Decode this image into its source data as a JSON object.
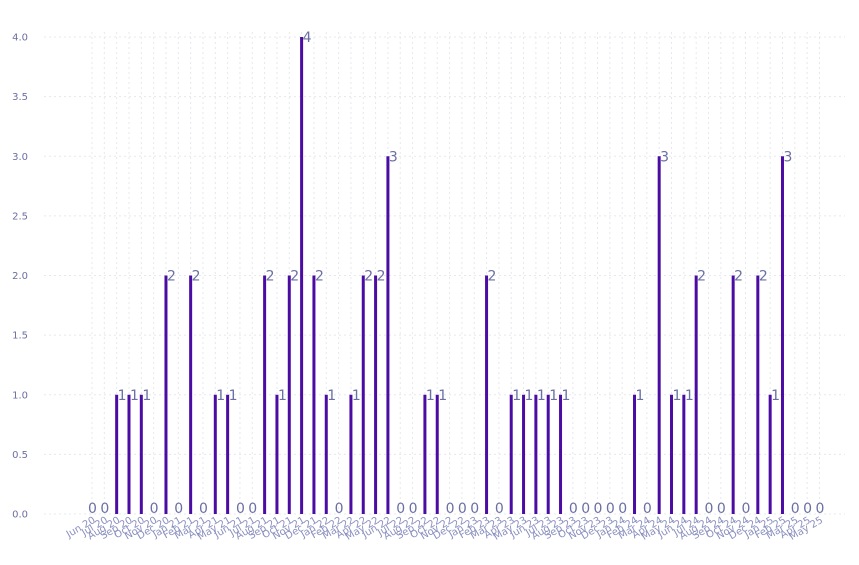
{
  "chart_data": {
    "type": "bar",
    "title": "",
    "xlabel": "",
    "ylabel": "",
    "ylim": [
      0,
      4.2
    ],
    "yticks": [
      "0.0",
      "0.5",
      "1.0",
      "1.5",
      "2.0",
      "2.5",
      "3.0",
      "3.5",
      "4.0"
    ],
    "grid": true,
    "bar_color": "#4b0ca3",
    "label_color": "#6b6fa3",
    "categories": [
      "Jun 20",
      "Jul 20",
      "Aug 20",
      "Sep 20",
      "Oct 20",
      "Nov 20",
      "Dec 20",
      "Jan 21",
      "Feb 21",
      "Mar 21",
      "Apr 21",
      "May 21",
      "Jun 21",
      "Jul 21",
      "Aug 21",
      "Sep 21",
      "Oct 21",
      "Nov 21",
      "Dec 21",
      "Jan 22",
      "Feb 22",
      "Mar 22",
      "Apr 22",
      "May 22",
      "Jun 22",
      "Jul 22",
      "Aug 22",
      "Sep 22",
      "Oct 22",
      "Nov 22",
      "Dec 22",
      "Jan 23",
      "Feb 23",
      "Mar 23",
      "Apr 23",
      "May 23",
      "Jun 23",
      "Jul 23",
      "Aug 23",
      "Sep 23",
      "Oct 23",
      "Nov 23",
      "Dec 23",
      "Jan 24",
      "Feb 24",
      "Mar 24",
      "Apr 24",
      "May 24",
      "Jun 24",
      "Jul 24",
      "Aug 24",
      "Sep 24",
      "Oct 24",
      "Nov 24",
      "Dec 24",
      "Jan 25",
      "Feb 25",
      "Mar 25",
      "Apr 25",
      "May 25"
    ],
    "values": [
      0,
      0,
      1,
      1,
      1,
      0,
      2,
      0,
      2,
      0,
      1,
      1,
      0,
      0,
      2,
      1,
      2,
      4,
      2,
      1,
      0,
      1,
      2,
      2,
      3,
      0,
      0,
      1,
      1,
      0,
      0,
      0,
      2,
      0,
      1,
      1,
      1,
      1,
      1,
      0,
      0,
      0,
      0,
      0,
      1,
      0,
      3,
      1,
      1,
      2,
      0,
      0,
      2,
      0,
      2,
      1,
      3,
      0,
      0,
      0
    ]
  }
}
